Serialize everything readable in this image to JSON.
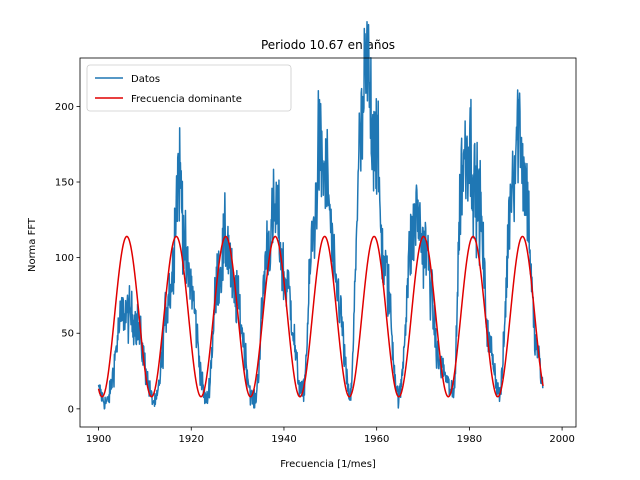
{
  "chart_data": {
    "type": "line",
    "title": "Periodo 10.67 en años",
    "xlabel": "Frecuencia [1/mes]",
    "ylabel": "Norma FFT",
    "xlim": [
      1896,
      2003
    ],
    "ylim": [
      -12,
      232
    ],
    "x_ticks": [
      1900,
      1920,
      1940,
      1960,
      1980,
      2000
    ],
    "y_ticks": [
      0,
      50,
      100,
      150,
      200
    ],
    "grid": false,
    "legend": "upper-left",
    "series": [
      {
        "name": "Datos",
        "color": "#1f77b4",
        "x_start": 1900,
        "x_end": 1995.9,
        "cycle_peaks": [
          [
            1900.0,
            12
          ],
          [
            1901.6,
            4
          ],
          [
            1905.5,
            64
          ],
          [
            1907.5,
            60
          ],
          [
            1912.2,
            4
          ],
          [
            1915.5,
            80
          ],
          [
            1917.3,
            157
          ],
          [
            1919.3,
            88
          ],
          [
            1923.3,
            6
          ],
          [
            1926.0,
            90
          ],
          [
            1927.6,
            112
          ],
          [
            1929.3,
            75
          ],
          [
            1933.6,
            5
          ],
          [
            1936.7,
            110
          ],
          [
            1938.2,
            130
          ],
          [
            1940.3,
            85
          ],
          [
            1944.0,
            10
          ],
          [
            1946.5,
            120
          ],
          [
            1947.5,
            170
          ],
          [
            1949.0,
            155
          ],
          [
            1951.3,
            80
          ],
          [
            1954.3,
            8
          ],
          [
            1956.5,
            175
          ],
          [
            1957.8,
            222
          ],
          [
            1959.5,
            185
          ],
          [
            1961.8,
            90
          ],
          [
            1964.8,
            8
          ],
          [
            1967.6,
            110
          ],
          [
            1968.5,
            130
          ],
          [
            1970.5,
            105
          ],
          [
            1973.6,
            30
          ],
          [
            1976.5,
            10
          ],
          [
            1978.5,
            160
          ],
          [
            1979.7,
            178
          ],
          [
            1981.8,
            140
          ],
          [
            1984.5,
            40
          ],
          [
            1986.5,
            10
          ],
          [
            1989.5,
            160
          ],
          [
            1990.7,
            192
          ],
          [
            1992.0,
            150
          ],
          [
            1994.5,
            40
          ],
          [
            1995.9,
            15
          ]
        ]
      },
      {
        "name": "Frecuencia dominante",
        "color": "#e00000",
        "x_start": 1900,
        "x_end": 1995.9,
        "amplitude": 53,
        "offset": 61,
        "period_years": 10.67,
        "first_peak_year": 1906.1
      }
    ]
  }
}
